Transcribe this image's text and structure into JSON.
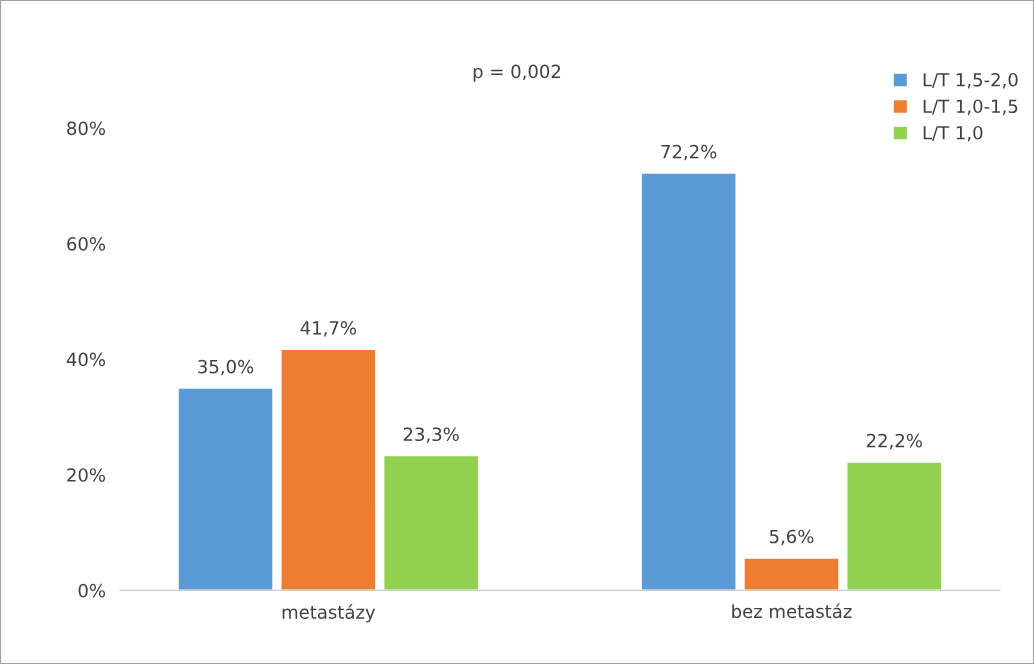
{
  "chart_data": {
    "type": "bar",
    "categories": [
      "metastázy",
      "bez metastáz"
    ],
    "series": [
      {
        "name": "L/T 1,5-2,0",
        "color": "#5b9bd5",
        "values": [
          35.0,
          72.2
        ],
        "value_labels": [
          "35,0%",
          "72,2%"
        ]
      },
      {
        "name": "L/T 1,0-1,5",
        "color": "#ed7d31",
        "values": [
          41.7,
          5.6
        ],
        "value_labels": [
          "41,7%",
          "5,6%"
        ]
      },
      {
        "name": "L/T 1,0",
        "color": "#92d050",
        "values": [
          23.3,
          22.2
        ],
        "value_labels": [
          "23,3%",
          "22,2%"
        ]
      }
    ],
    "ylim": [
      0,
      84
    ],
    "yticks": [
      {
        "value": 0,
        "label": "0%"
      },
      {
        "value": 20,
        "label": "20%"
      },
      {
        "value": 40,
        "label": "40%"
      },
      {
        "value": 60,
        "label": "60%"
      },
      {
        "value": 80,
        "label": "80%"
      }
    ],
    "annotations": [
      "p = 0,002"
    ],
    "legend": "top right",
    "grid": false
  }
}
